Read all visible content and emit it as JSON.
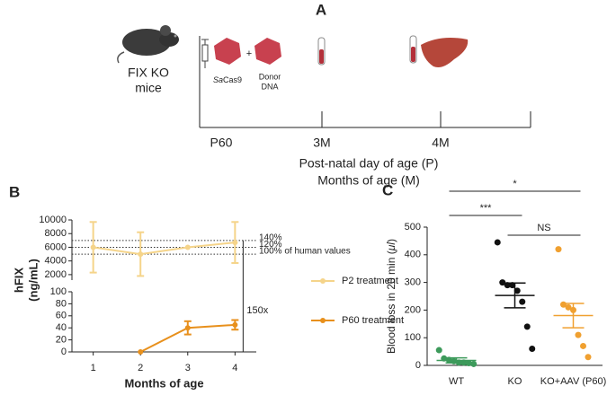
{
  "diagram": {
    "label": "A",
    "subject": [
      "FIX KO",
      "mice"
    ],
    "plus": "+",
    "cas9": {
      "italic": "Sa",
      "rest": "Cas9"
    },
    "donor": [
      "Donor",
      "DNA"
    ],
    "timepoints": [
      "P60",
      "3M",
      "4M"
    ],
    "legend": [
      "Post-natal day of age (P)",
      "Months of age (M)"
    ]
  },
  "chart_data": [
    {
      "type": "line",
      "label": "B",
      "ylabel": [
        "hFIX",
        "(ng/mL)"
      ],
      "xlabel": "Months of age",
      "x": [
        1,
        2,
        3,
        4
      ],
      "xlim": [
        0.55,
        4.45
      ],
      "xticks": [
        1,
        2,
        3,
        4
      ],
      "ylim": [
        0,
        100
      ],
      "yticks": [
        0,
        20,
        40,
        60,
        80,
        100
      ],
      "y2lim": [
        1200,
        10000
      ],
      "y2ticks": [
        2000,
        4000,
        6000,
        8000,
        10000
      ],
      "reference_lines": [
        {
          "value": 7000,
          "label": "140%"
        },
        {
          "value": 6000,
          "label": "120%"
        },
        {
          "value": 5000,
          "label": "100% of human values"
        }
      ],
      "annotation": "150x",
      "series": [
        {
          "name": "P2 treatment",
          "color": "#f5d48a",
          "axis": "y2",
          "values": [
            6000,
            5000,
            6000,
            6700
          ],
          "errors": [
            3700,
            3200,
            null,
            3000
          ]
        },
        {
          "name": "P60 treatment",
          "color": "#e8901c",
          "values": [
            null,
            0,
            40,
            45
          ],
          "errors": [
            null,
            null,
            11,
            8
          ]
        }
      ]
    },
    {
      "type": "dot",
      "label": "C",
      "ylabel": {
        "main": "Blood loss in 20 min (",
        "italic": "μl",
        "end": ")"
      },
      "categories": [
        "WT",
        "KO",
        "KO+AAV (P60)"
      ],
      "ylim": [
        0,
        500
      ],
      "yticks": [
        0,
        100,
        200,
        300,
        400,
        500
      ],
      "groups": [
        {
          "color": "#3d9a5b",
          "values": [
            55,
            25,
            20,
            15,
            10,
            10,
            8,
            5
          ],
          "mean": 18,
          "sem": 9
        },
        {
          "color": "#111111",
          "values": [
            445,
            300,
            290,
            290,
            270,
            230,
            140,
            60
          ],
          "mean": 253,
          "sem": 45
        },
        {
          "color": "#f0a030",
          "values": [
            420,
            220,
            210,
            200,
            110,
            70,
            30
          ],
          "mean": 180,
          "sem": 44
        }
      ],
      "significance": [
        "***",
        "NS",
        "*"
      ]
    }
  ]
}
